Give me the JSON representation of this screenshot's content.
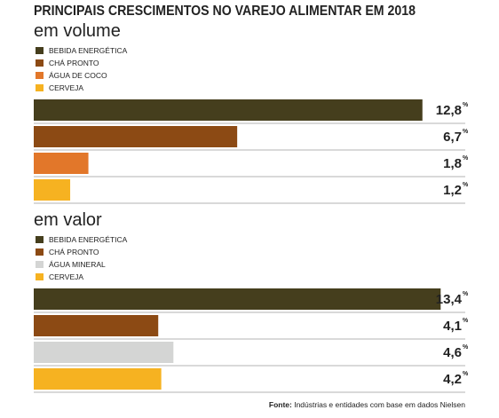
{
  "title": "PRINCIPAIS CRESCIMENTOS NO VAREJO ALIMENTAR EM 2018",
  "source": "Fonte: Indústrias e entidades com base em dados Nielsen",
  "source_bold": "Fonte:",
  "source_rest": " Indústrias e entidades com base em dados Nielsen",
  "percent_suffix": "%",
  "chart_data": [
    {
      "type": "bar",
      "subtitle": "em volume",
      "categories": [
        "BEBIDA ENERGÉTICA",
        "CHÁ PRONTO",
        "ÁGUA DE COCO",
        "CERVEJA"
      ],
      "values": [
        12.8,
        6.7,
        1.8,
        1.2
      ],
      "value_labels": [
        "12,8",
        "6,7",
        "1,8",
        "1,2"
      ],
      "colors": [
        "#453e1d",
        "#8c4a14",
        "#e2772a",
        "#f6b221"
      ],
      "legend": "top-left",
      "orientation": "horizontal"
    },
    {
      "type": "bar",
      "subtitle": "em valor",
      "categories": [
        "BEBIDA ENERGÉTICA",
        "CHÁ PRONTO",
        "ÁGUA MINERAL",
        "CERVEJA"
      ],
      "values": [
        13.4,
        4.1,
        4.6,
        4.2
      ],
      "value_labels": [
        "13,4",
        "4,1",
        "4,6",
        "4,2"
      ],
      "colors": [
        "#453e1d",
        "#8c4a14",
        "#d4d5d4",
        "#f6b221"
      ],
      "legend": "top-left",
      "orientation": "horizontal"
    }
  ]
}
